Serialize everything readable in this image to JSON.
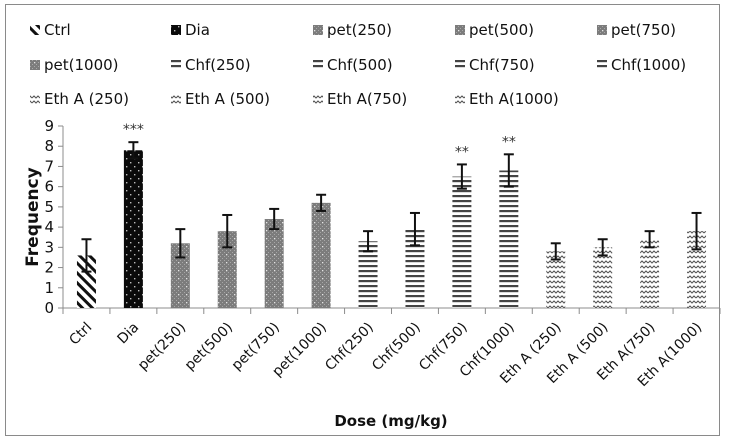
{
  "chart_data": {
    "type": "bar",
    "title": "",
    "xlabel": "Dose (mg/kg)",
    "ylabel": "Frequency",
    "ylim": [
      0,
      9
    ],
    "yticks": [
      0,
      1,
      2,
      3,
      4,
      5,
      6,
      7,
      8,
      9
    ],
    "grid": false,
    "legend_position": "top",
    "categories": [
      "Ctrl",
      "Dia",
      "pet(250)",
      "pet(500)",
      "pet(750)",
      "pet(1000)",
      "Chf(250)",
      "Chf(500)",
      "Chf(750)",
      "Chf(1000)",
      "Eth A (250)",
      "Eth A (500)",
      "Eth A(750)",
      "Eth A(1000)"
    ],
    "values": [
      2.6,
      7.8,
      3.2,
      3.8,
      4.4,
      5.2,
      3.3,
      3.9,
      6.5,
      6.8,
      2.8,
      3.0,
      3.4,
      3.8
    ],
    "errors": [
      0.8,
      0.4,
      0.7,
      0.8,
      0.5,
      0.4,
      0.5,
      0.8,
      0.6,
      0.8,
      0.4,
      0.4,
      0.4,
      0.9
    ],
    "patterns": [
      "diagonal",
      "dotted-dark",
      "checker",
      "checker",
      "checker",
      "checker",
      "horizontal",
      "horizontal",
      "horizontal",
      "horizontal",
      "wave",
      "wave",
      "wave",
      "wave"
    ],
    "significance": [
      "",
      "***",
      "",
      "",
      "",
      "",
      "",
      "",
      "**",
      "**",
      "",
      "",
      "",
      ""
    ],
    "legend": [
      {
        "label": "Ctrl",
        "pattern": "diagonal"
      },
      {
        "label": "Dia",
        "pattern": "dotted-dark"
      },
      {
        "label": "pet(250)",
        "pattern": "checker"
      },
      {
        "label": "pet(500)",
        "pattern": "checker"
      },
      {
        "label": "pet(750)",
        "pattern": "checker"
      },
      {
        "label": "pet(1000)",
        "pattern": "checker"
      },
      {
        "label": "Chf(250)",
        "pattern": "horizontal"
      },
      {
        "label": "Chf(500)",
        "pattern": "horizontal"
      },
      {
        "label": "Chf(750)",
        "pattern": "horizontal"
      },
      {
        "label": "Chf(1000)",
        "pattern": "horizontal"
      },
      {
        "label": "Eth A (250)",
        "pattern": "wave"
      },
      {
        "label": "Eth A (500)",
        "pattern": "wave"
      },
      {
        "label": "Eth A(750)",
        "pattern": "wave"
      },
      {
        "label": "Eth A(1000)",
        "pattern": "wave"
      }
    ]
  }
}
